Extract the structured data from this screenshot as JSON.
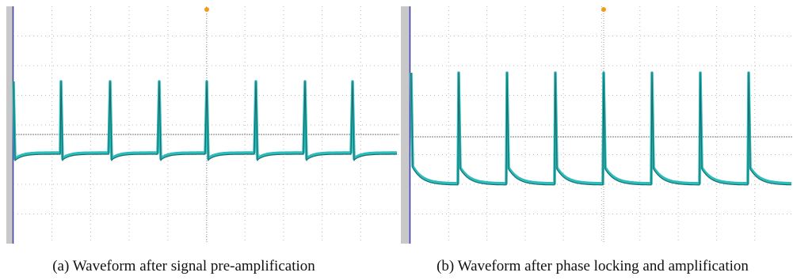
{
  "panels": [
    {
      "caption": "(a) Waveform after signal pre-amplification"
    },
    {
      "caption": "(b) Waveform after phase locking and amplification"
    }
  ]
}
